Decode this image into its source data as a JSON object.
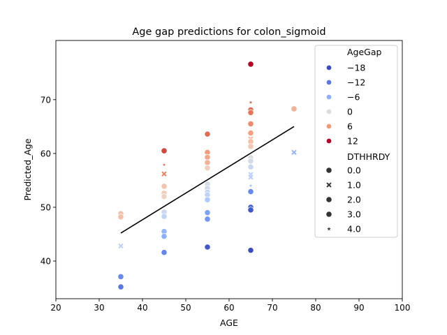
{
  "chart_data": {
    "type": "scatter",
    "title": "Age gap predictions for colon_sigmoid",
    "xlabel": "AGE",
    "ylabel": "Predicted_Age",
    "xlim": [
      20,
      100
    ],
    "ylim": [
      33,
      81
    ],
    "xticks": [
      "20",
      "30",
      "40",
      "50",
      "60",
      "70",
      "80",
      "90",
      "100"
    ],
    "yticks": [
      "40",
      "50",
      "60",
      "70"
    ],
    "grid": false,
    "legend": {
      "placement": "top-right",
      "hue_title": "AgeGap",
      "hue_entries": [
        {
          "label": "−18",
          "color": "#3b4cc0"
        },
        {
          "label": "−12",
          "color": "#5a78e4"
        },
        {
          "label": "−6",
          "color": "#8db0fe"
        },
        {
          "label": "0",
          "color": "#dddcdc"
        },
        {
          "label": "6",
          "color": "#f3997a"
        },
        {
          "label": "12",
          "color": "#b40426"
        }
      ],
      "style_title": "DTHHRDY",
      "style_entries": [
        {
          "label": "0.0",
          "marker": "circle"
        },
        {
          "label": "1.0",
          "marker": "x"
        },
        {
          "label": "2.0",
          "marker": "circle"
        },
        {
          "label": "3.0",
          "marker": "circle"
        },
        {
          "label": "4.0",
          "marker": "star"
        }
      ]
    },
    "trend_line": {
      "x": [
        35,
        75
      ],
      "y": [
        45.2,
        65.0
      ],
      "color": "#000000"
    },
    "points": [
      {
        "x": 35,
        "y": 48.8,
        "color": "#f5c0a7",
        "marker": "circle"
      },
      {
        "x": 35,
        "y": 48.2,
        "color": "#f5c0a7",
        "marker": "circle"
      },
      {
        "x": 35,
        "y": 42.8,
        "color": "#b9d0f9",
        "marker": "x"
      },
      {
        "x": 35,
        "y": 37.1,
        "color": "#6788ee",
        "marker": "circle"
      },
      {
        "x": 35,
        "y": 35.2,
        "color": "#5a78e4",
        "marker": "circle"
      },
      {
        "x": 45,
        "y": 60.5,
        "color": "#d0473d",
        "marker": "circle"
      },
      {
        "x": 45,
        "y": 57.9,
        "color": "#e8765c",
        "marker": "star"
      },
      {
        "x": 45,
        "y": 56.2,
        "color": "#ec8165",
        "marker": "x"
      },
      {
        "x": 45,
        "y": 53.9,
        "color": "#f4c5ad",
        "marker": "circle"
      },
      {
        "x": 45,
        "y": 52.6,
        "color": "#f2cbb7",
        "marker": "circle"
      },
      {
        "x": 45,
        "y": 52.0,
        "color": "#ecd3c5",
        "marker": "circle"
      },
      {
        "x": 45,
        "y": 49.1,
        "color": "#c9d7f0",
        "marker": "circle"
      },
      {
        "x": 45,
        "y": 48.3,
        "color": "#c0d4f5",
        "marker": "circle"
      },
      {
        "x": 45,
        "y": 45.5,
        "color": "#93b5fe",
        "marker": "circle"
      },
      {
        "x": 45,
        "y": 44.6,
        "color": "#8db0fe",
        "marker": "circle"
      },
      {
        "x": 45,
        "y": 41.6,
        "color": "#6485ec",
        "marker": "circle"
      },
      {
        "x": 55,
        "y": 63.6,
        "color": "#e36c55",
        "marker": "circle"
      },
      {
        "x": 55,
        "y": 60.2,
        "color": "#f59c7d",
        "marker": "circle"
      },
      {
        "x": 55,
        "y": 59.3,
        "color": "#f4a688",
        "marker": "circle"
      },
      {
        "x": 55,
        "y": 58.3,
        "color": "#f5b194",
        "marker": "circle"
      },
      {
        "x": 55,
        "y": 57.3,
        "color": "#efcfbf",
        "marker": "circle"
      },
      {
        "x": 55,
        "y": 54.3,
        "color": "#d6dce4",
        "marker": "circle"
      },
      {
        "x": 55,
        "y": 53.5,
        "color": "#cfdaea",
        "marker": "circle"
      },
      {
        "x": 55,
        "y": 52.8,
        "color": "#c3d5f4",
        "marker": "circle"
      },
      {
        "x": 55,
        "y": 52.3,
        "color": "#bfd3f6",
        "marker": "circle"
      },
      {
        "x": 55,
        "y": 51.4,
        "color": "#aec9fc",
        "marker": "circle"
      },
      {
        "x": 55,
        "y": 49.0,
        "color": "#7ea1fa",
        "marker": "circle"
      },
      {
        "x": 55,
        "y": 47.8,
        "color": "#7396f5",
        "marker": "circle"
      },
      {
        "x": 55,
        "y": 42.6,
        "color": "#4358cb",
        "marker": "circle"
      },
      {
        "x": 65,
        "y": 76.6,
        "color": "#b40426",
        "marker": "circle"
      },
      {
        "x": 65,
        "y": 69.5,
        "color": "#dc5d4a",
        "marker": "star"
      },
      {
        "x": 65,
        "y": 68.1,
        "color": "#e36c55",
        "marker": "circle"
      },
      {
        "x": 65,
        "y": 67.6,
        "color": "#e7745b",
        "marker": "circle"
      },
      {
        "x": 65,
        "y": 65.5,
        "color": "#f08b6e",
        "marker": "circle"
      },
      {
        "x": 65,
        "y": 63.8,
        "color": "#f5a081",
        "marker": "circle"
      },
      {
        "x": 65,
        "y": 62.7,
        "color": "#f6b497",
        "marker": "x"
      },
      {
        "x": 65,
        "y": 62.2,
        "color": "#f5c0a7",
        "marker": "circle"
      },
      {
        "x": 65,
        "y": 61.3,
        "color": "#f3c7b1",
        "marker": "circle"
      },
      {
        "x": 65,
        "y": 59.2,
        "color": "#dbdcde",
        "marker": "circle"
      },
      {
        "x": 65,
        "y": 58.6,
        "color": "#d4dbe6",
        "marker": "circle"
      },
      {
        "x": 65,
        "y": 57.5,
        "color": "#c9d7f0",
        "marker": "circle"
      },
      {
        "x": 65,
        "y": 56.1,
        "color": "#b9d0f9",
        "marker": "x"
      },
      {
        "x": 65,
        "y": 55.6,
        "color": "#b3cdfb",
        "marker": "x"
      },
      {
        "x": 65,
        "y": 54.0,
        "color": "#9ebeff",
        "marker": "star"
      },
      {
        "x": 65,
        "y": 52.9,
        "color": "#6788ee",
        "marker": "circle"
      },
      {
        "x": 65,
        "y": 50.0,
        "color": "#4a63d3",
        "marker": "circle"
      },
      {
        "x": 65,
        "y": 49.5,
        "color": "#4358cb",
        "marker": "circle"
      },
      {
        "x": 65,
        "y": 42.0,
        "color": "#3b4cc0",
        "marker": "circle"
      },
      {
        "x": 75,
        "y": 68.3,
        "color": "#f5b194",
        "marker": "circle"
      },
      {
        "x": 75,
        "y": 60.2,
        "color": "#93b5fe",
        "marker": "x"
      }
    ]
  }
}
